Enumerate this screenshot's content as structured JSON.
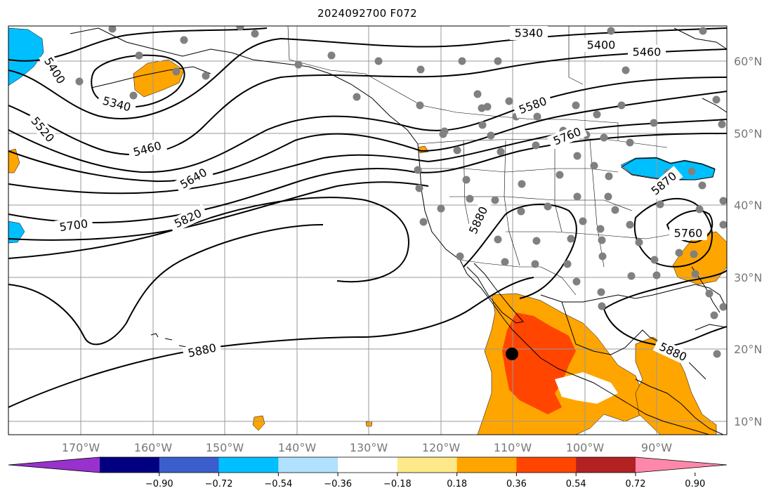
{
  "title": "2024092700 F072",
  "lon_labels": [
    "170°W",
    "160°W",
    "150°W",
    "140°W",
    "130°W",
    "120°W",
    "110°W",
    "100°W",
    "90°W"
  ],
  "lat_labels": [
    "60°N",
    "50°N",
    "40°N",
    "30°N",
    "20°N",
    "10°N"
  ],
  "contour_labels": [
    "5340",
    "5400",
    "5460",
    "5340",
    "5400",
    "5520",
    "5460",
    "5580",
    "5760",
    "5640",
    "5700",
    "5820",
    "5880",
    "5870",
    "5760",
    "5880",
    "5880"
  ],
  "colorbar": {
    "ticks": [
      "−0.90",
      "−0.72",
      "−0.54",
      "−0.36",
      "−0.18",
      "0.18",
      "0.36",
      "0.54",
      "0.72",
      "0.90"
    ],
    "colors": [
      "#9932cc",
      "#000080",
      "#3a5fcd",
      "#00bfff",
      "#b0e2ff",
      "#ffffff",
      "#fde98a",
      "#ffa500",
      "#ff4500",
      "#b22222",
      "#ff88aa"
    ]
  },
  "colors": {
    "contour": "#000000",
    "grid": "#999999",
    "coast": "#000000",
    "station": "#808080",
    "marker": "#000000"
  }
}
